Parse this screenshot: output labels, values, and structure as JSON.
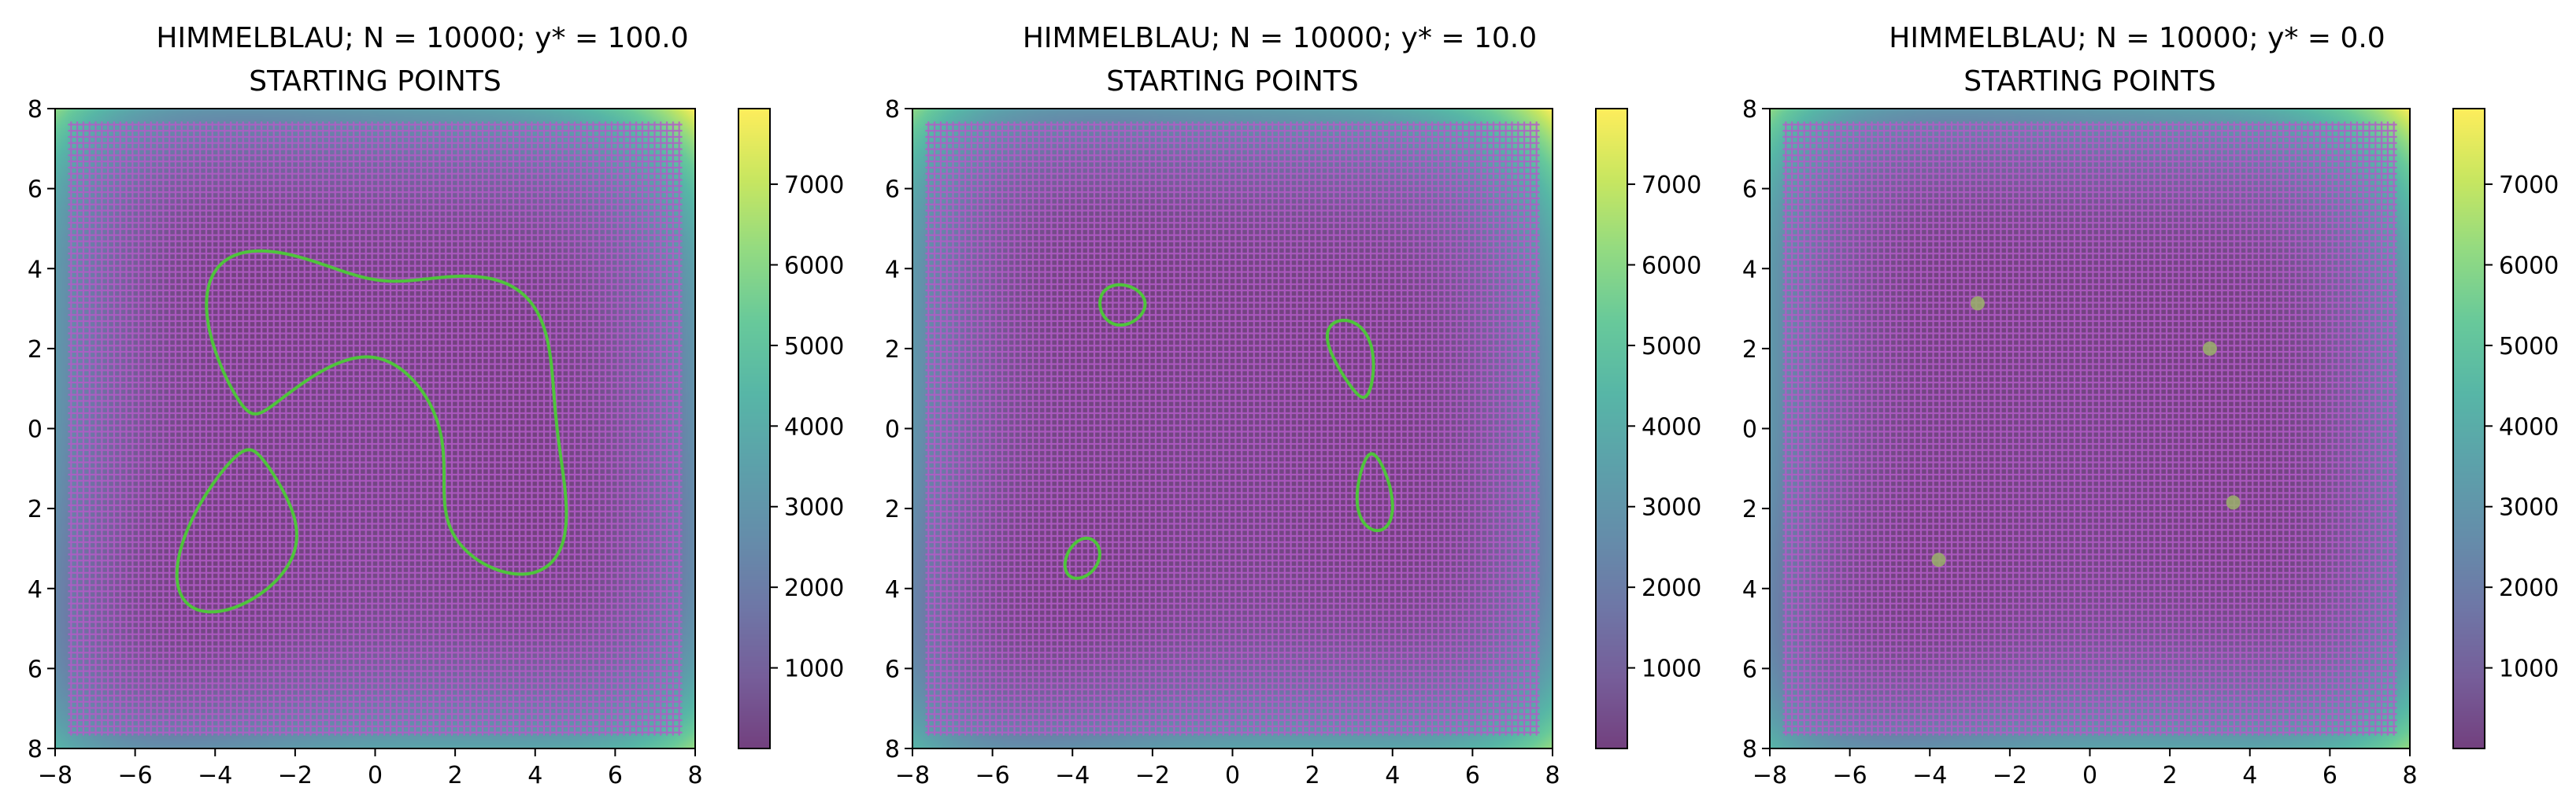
{
  "chart_data": [
    {
      "type": "heatmap",
      "title": "HIMMELBLAU; N = 10000; y* = 100.0",
      "subtitle": "STARTING POINTS",
      "function": "himmelblau",
      "xlim": [
        -8,
        8
      ],
      "ylim": [
        -8,
        8
      ],
      "x_ticks": [
        "−8",
        "−6",
        "−4",
        "−2",
        "0",
        "2",
        "4",
        "6",
        "8"
      ],
      "y_ticks": [
        "8",
        "6",
        "4",
        "2",
        "0",
        "2",
        "4",
        "6",
        "8"
      ],
      "colorbar_ticks": [
        "1000",
        "2000",
        "3000",
        "4000",
        "5000",
        "6000",
        "7000"
      ],
      "colorbar_range": [
        0,
        7938
      ],
      "colormap": "viridis",
      "grid_points": {
        "n": 10000,
        "range": [
          -7.6,
          7.6
        ],
        "color": "#b45ac8"
      },
      "contour": {
        "level": 100.0,
        "color": "#4fc43c"
      }
    },
    {
      "type": "heatmap",
      "title": "HIMMELBLAU; N = 10000; y* = 10.0",
      "subtitle": "STARTING POINTS",
      "function": "himmelblau",
      "xlim": [
        -8,
        8
      ],
      "ylim": [
        -8,
        8
      ],
      "x_ticks": [
        "−8",
        "−6",
        "−4",
        "−2",
        "0",
        "2",
        "4",
        "6",
        "8"
      ],
      "y_ticks": [
        "8",
        "6",
        "4",
        "2",
        "0",
        "2",
        "4",
        "6",
        "8"
      ],
      "colorbar_ticks": [
        "1000",
        "2000",
        "3000",
        "4000",
        "5000",
        "6000",
        "7000"
      ],
      "colorbar_range": [
        0,
        7938
      ],
      "colormap": "viridis",
      "grid_points": {
        "n": 10000,
        "range": [
          -7.6,
          7.6
        ],
        "color": "#b45ac8"
      },
      "contour": {
        "level": 10.0,
        "color": "#4fc43c"
      }
    },
    {
      "type": "heatmap",
      "title": "HIMMELBLAU; N = 10000; y* = 0.0",
      "subtitle": "STARTING POINTS",
      "function": "himmelblau",
      "xlim": [
        -8,
        8
      ],
      "ylim": [
        -8,
        8
      ],
      "x_ticks": [
        "−8",
        "−6",
        "−4",
        "−2",
        "0",
        "2",
        "4",
        "6",
        "8"
      ],
      "y_ticks": [
        "8",
        "6",
        "4",
        "2",
        "0",
        "2",
        "4",
        "6",
        "8"
      ],
      "colorbar_ticks": [
        "1000",
        "2000",
        "3000",
        "4000",
        "5000",
        "6000",
        "7000"
      ],
      "colorbar_range": [
        0,
        7938
      ],
      "colormap": "viridis",
      "grid_points": {
        "n": 10000,
        "range": [
          -7.6,
          7.6
        ],
        "color": "#b45ac8"
      },
      "minima": [
        {
          "x": 3.0,
          "y": 2.0
        },
        {
          "x": -2.805,
          "y": 3.131
        },
        {
          "x": -3.779,
          "y": -3.283
        },
        {
          "x": 3.584,
          "y": -1.848
        }
      ],
      "minima_color": "#9ab26a"
    }
  ]
}
